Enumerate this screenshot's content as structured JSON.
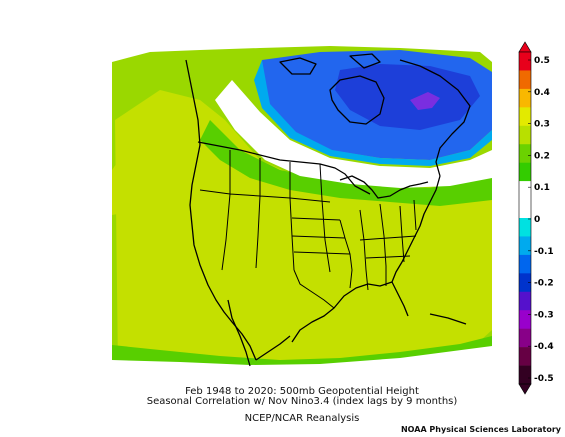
{
  "caption": {
    "line1": "Feb 1948 to 2020: 500mb Geopotential Height",
    "line2": "Seasonal Correlation w/ Nov Nino3.4 (index lags by 9 months)",
    "line3": "NCEP/NCAR Reanalysis"
  },
  "credit": "NOAA Physical Sciences Laboratory",
  "colorbar": {
    "labels": [
      "0.5",
      "0.4",
      "0.3",
      "0.2",
      "0.1",
      "0",
      "-0.1",
      "-0.2",
      "-0.3",
      "-0.4",
      "-0.5"
    ],
    "colors": [
      "#e8001b",
      "#f06a00",
      "#f9b800",
      "#e3ea00",
      "#b8e000",
      "#6bd200",
      "#33cc00",
      "#ffffff",
      "#ffffff",
      "#00e1e1",
      "#00aaee",
      "#0066ee",
      "#0033cc",
      "#5511cc",
      "#9900cc",
      "#880088",
      "#660044",
      "#330022"
    ]
  },
  "map_colors": {
    "ocean_yellowgreen": "#c4e000",
    "lightgreen": "#9ad800",
    "green": "#58cf00",
    "white": "#ffffff",
    "blue": "#2266ee",
    "darkblue": "#1d3fd9",
    "purple": "#7a2ee0"
  }
}
